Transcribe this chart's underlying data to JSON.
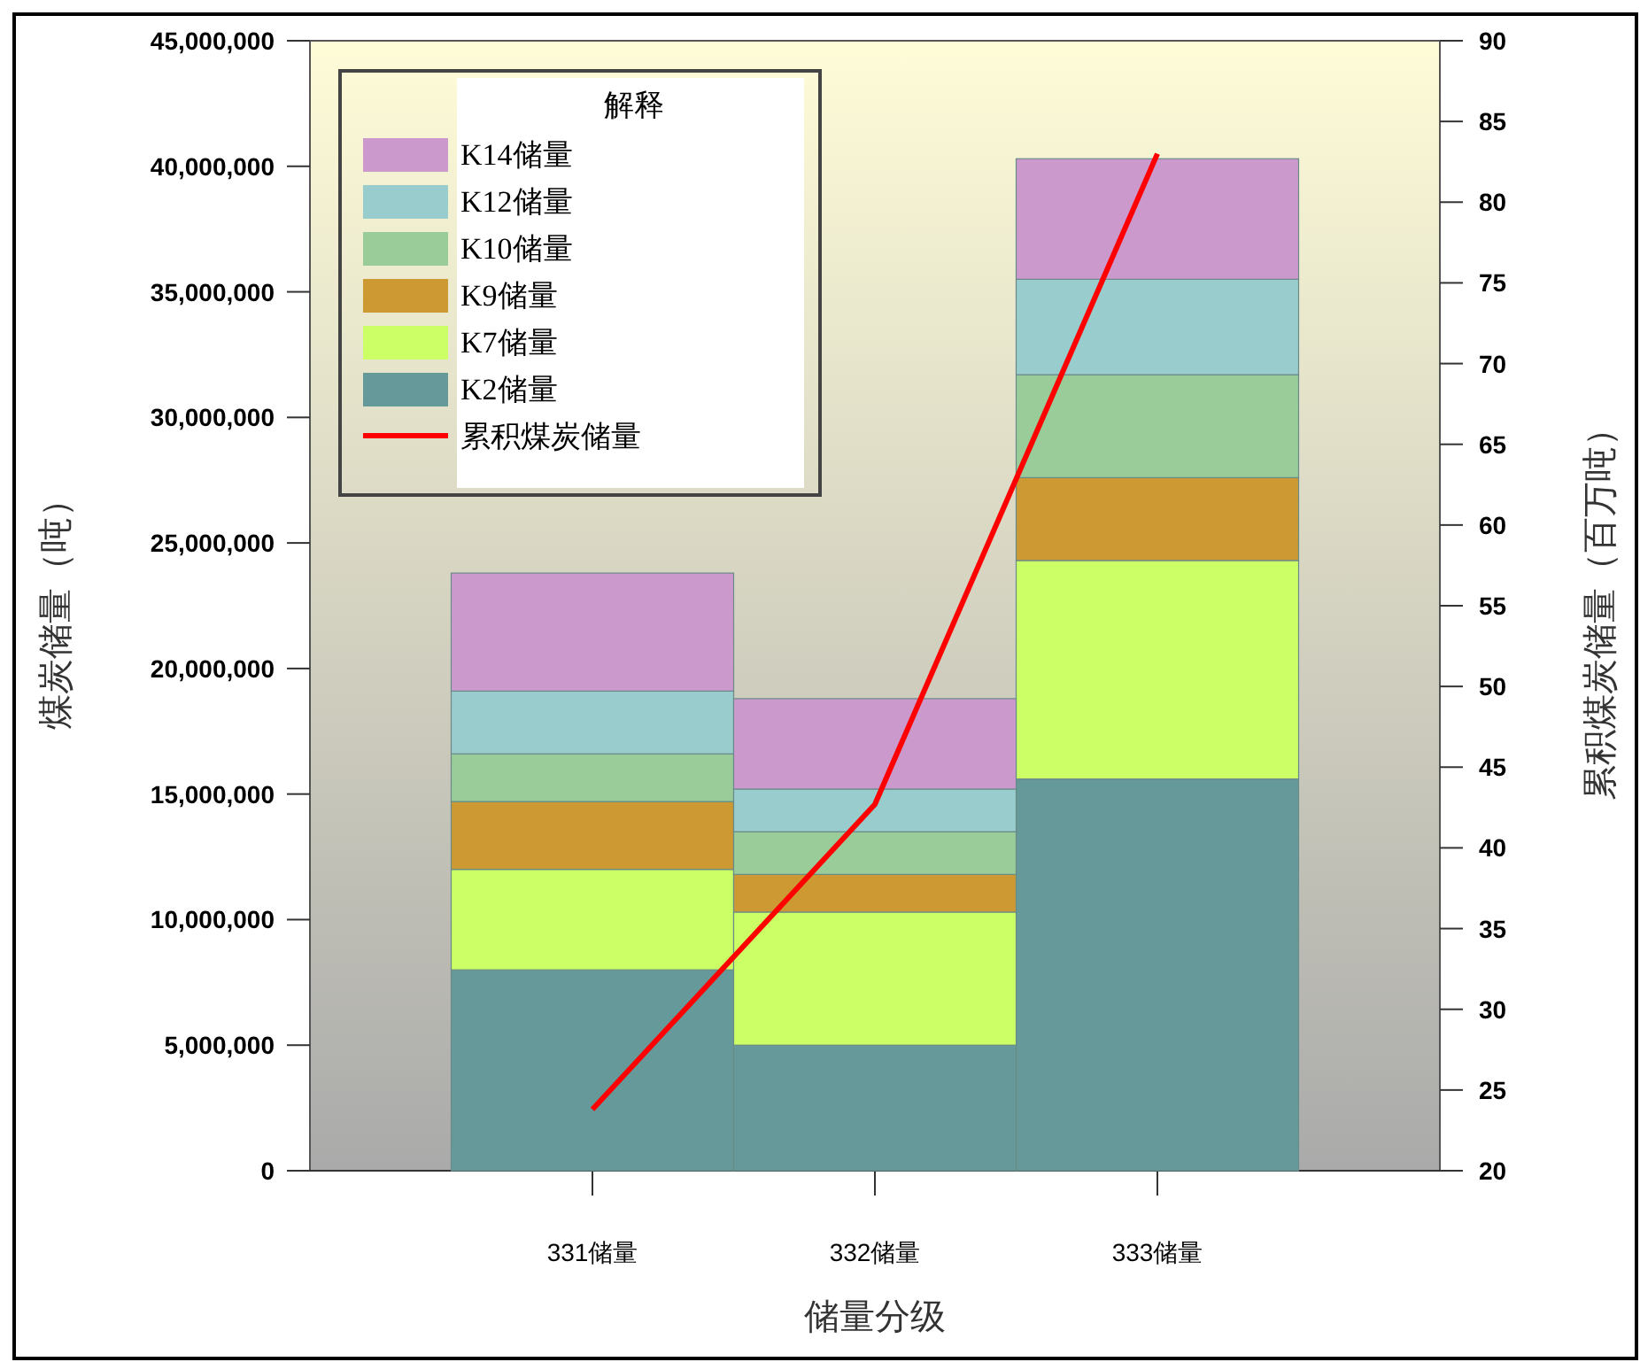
{
  "chart_data": {
    "type": "bar",
    "stacked": true,
    "categories": [
      "331储量",
      "332储量",
      "333储量"
    ],
    "xlabel": "储量分级",
    "ylabel": "煤炭储量（吨）",
    "y2label": "累积煤炭储量（百万吨）",
    "legend_title": "解释",
    "legend": "top left",
    "grid": false,
    "ylim": [
      0,
      45000000
    ],
    "yticks": [
      0,
      {
        "value": 5000000,
        "label": "5,000,000"
      },
      {
        "value": 10000000,
        "label": "10,000,000"
      },
      {
        "value": 15000000,
        "label": "15,000,000"
      },
      {
        "value": 20000000,
        "label": "20,000,000"
      },
      {
        "value": 25000000,
        "label": "25,000,000"
      },
      {
        "value": 30000000,
        "label": "30,000,000"
      },
      {
        "value": 35000000,
        "label": "35,000,000"
      },
      {
        "value": 40000000,
        "label": "40,000,000"
      },
      {
        "value": 45000000,
        "label": "45,000,000"
      }
    ],
    "y2lim": [
      20,
      90
    ],
    "y2ticks": [
      20,
      25,
      30,
      35,
      40,
      45,
      50,
      55,
      60,
      65,
      70,
      75,
      80,
      85,
      90
    ],
    "series": [
      {
        "name": "K2储量",
        "color": "#669999",
        "values": [
          8000000,
          5000000,
          15600000
        ]
      },
      {
        "name": "K7储量",
        "color": "#ccff66",
        "values": [
          4000000,
          5300000,
          8700000
        ]
      },
      {
        "name": "K9储量",
        "color": "#cc9933",
        "values": [
          2700000,
          1500000,
          3300000
        ]
      },
      {
        "name": "K10储量",
        "color": "#99cc99",
        "values": [
          1900000,
          1700000,
          4100000
        ]
      },
      {
        "name": "K12储量",
        "color": "#99cccc",
        "values": [
          2500000,
          1700000,
          3800000
        ]
      },
      {
        "name": "K14储量",
        "color": "#cc99cc",
        "values": [
          4700000,
          3600000,
          4800000
        ]
      },
      {
        "name": "累积煤炭储量",
        "color": "#ff0000",
        "type": "line",
        "axis": "y2",
        "values": [
          23.8,
          42.7,
          83
        ]
      }
    ]
  }
}
